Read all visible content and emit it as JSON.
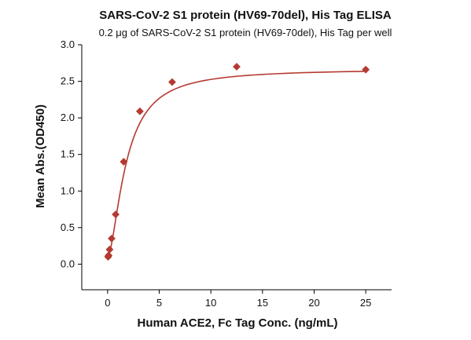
{
  "chart_data": {
    "type": "scatter",
    "title": "SARS-CoV-2 S1 protein (HV69-70del), His Tag ELISA",
    "subtitle": "0.2 μg of SARS-CoV-2 S1 protein (HV69-70del), His Tag per well",
    "xlabel": "Human ACE2, Fc Tag Conc. (ng/mL)",
    "ylabel": "Mean Abs.(OD450)",
    "xlim": [
      -2.5,
      27.5
    ],
    "ylim": [
      -0.35,
      3.0
    ],
    "x_ticks": [
      0,
      5,
      10,
      15,
      20,
      25
    ],
    "y_ticks": [
      0.0,
      0.5,
      1.0,
      1.5,
      2.0,
      2.5,
      3.0
    ],
    "x_tick_labels": [
      "0",
      "5",
      "10",
      "15",
      "20",
      "25"
    ],
    "y_tick_labels": [
      "0.0",
      "0.5",
      "1.0",
      "1.5",
      "2.0",
      "2.5",
      "3.0"
    ],
    "grid": false,
    "series": [
      {
        "marker": "diamond",
        "x": [
          0.049,
          0.098,
          0.195,
          0.39,
          0.78,
          1.56,
          3.125,
          6.25,
          12.5,
          25
        ],
        "y": [
          0.1,
          0.12,
          0.2,
          0.35,
          0.68,
          1.4,
          2.09,
          2.49,
          2.7,
          2.66
        ],
        "fit": {
          "model": "4PL",
          "bottom": 0.09,
          "top": 2.67,
          "ec50": 1.8,
          "hill": 1.65
        }
      }
    ],
    "colors": {
      "series": "#b53a32",
      "axis": "#000000"
    }
  }
}
